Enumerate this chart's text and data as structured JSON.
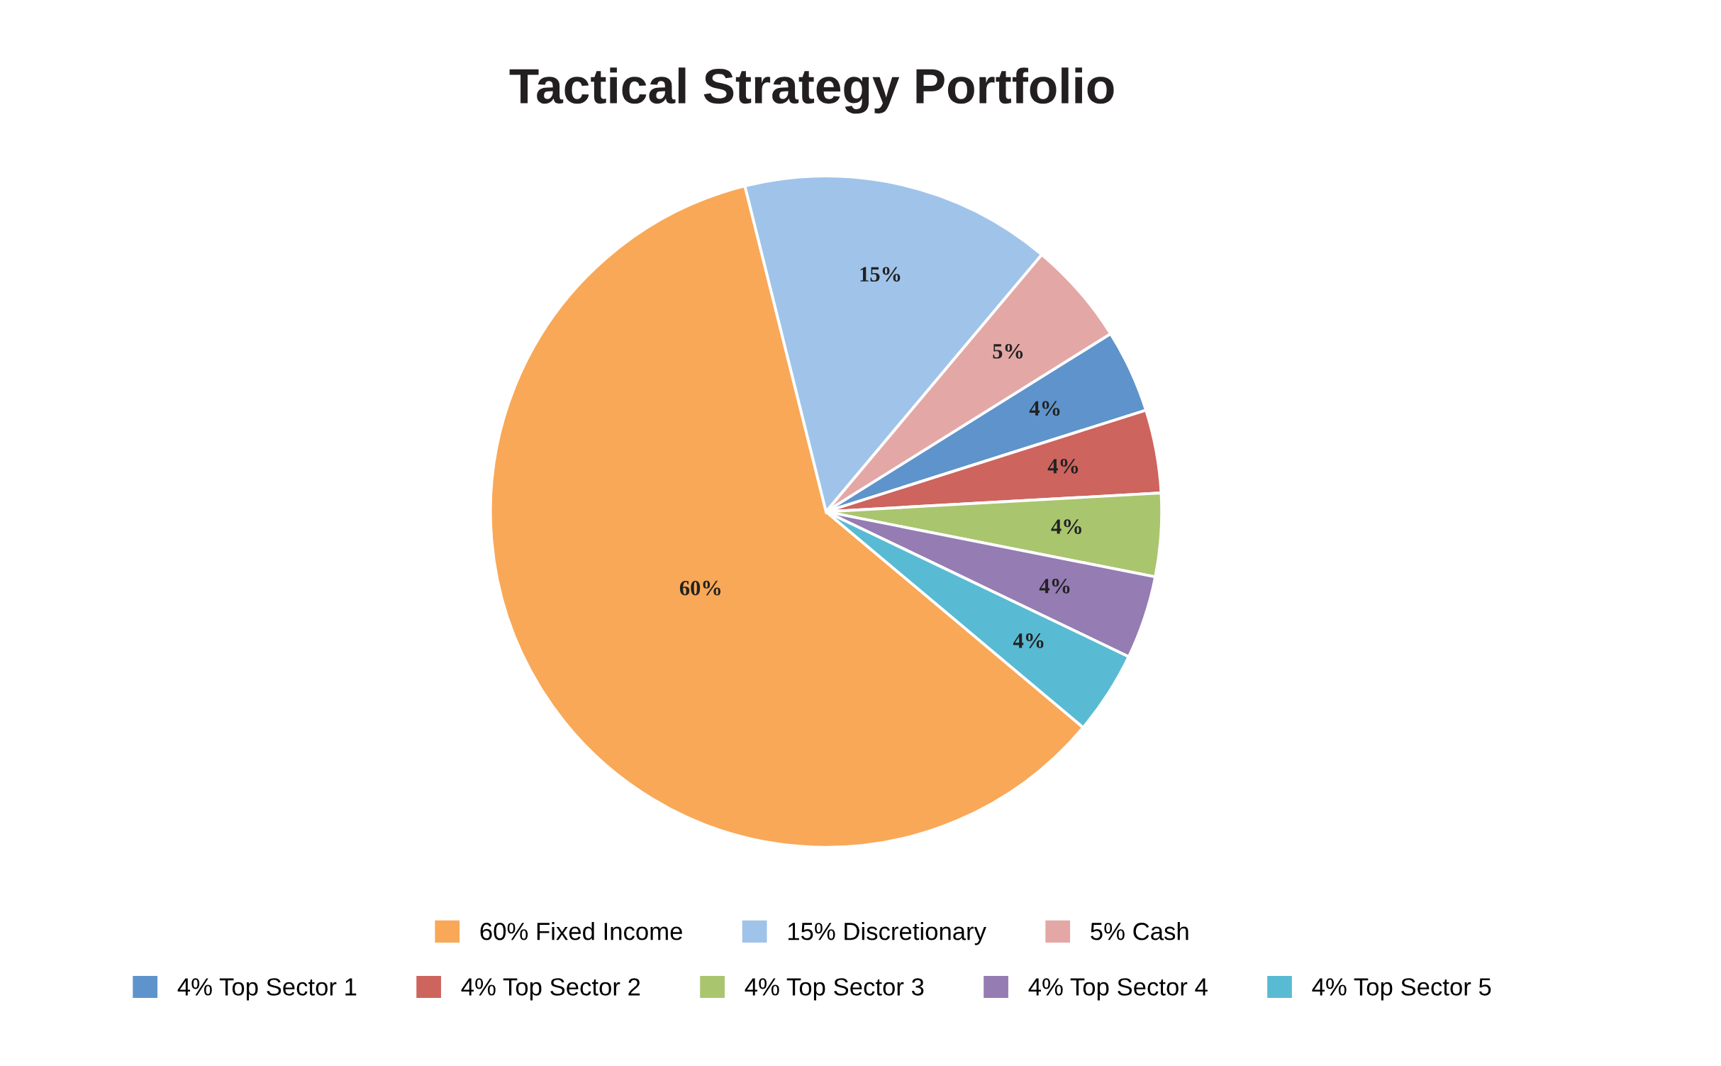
{
  "chart_data": {
    "type": "pie",
    "title": "Tactical Strategy Portfolio",
    "categories": [
      "60% Fixed Income",
      "15% Discretionary",
      "5% Cash",
      "4% Top Sector 1",
      "4% Top Sector 2",
      "4% Top Sector 3",
      "4% Top Sector 4",
      "4% Top Sector 5"
    ],
    "values": [
      60,
      15,
      5,
      4,
      4,
      4,
      4,
      4
    ],
    "value_labels": [
      "60%",
      "15%",
      "5%",
      "4%",
      "4%",
      "4%",
      "4%",
      "4%"
    ],
    "colors": [
      "#f9a857",
      "#a0c3ea",
      "#e3a8a6",
      "#5f93cb",
      "#cd645e",
      "#a9c56e",
      "#957cb3",
      "#59bad3"
    ],
    "legend": "bottom"
  }
}
